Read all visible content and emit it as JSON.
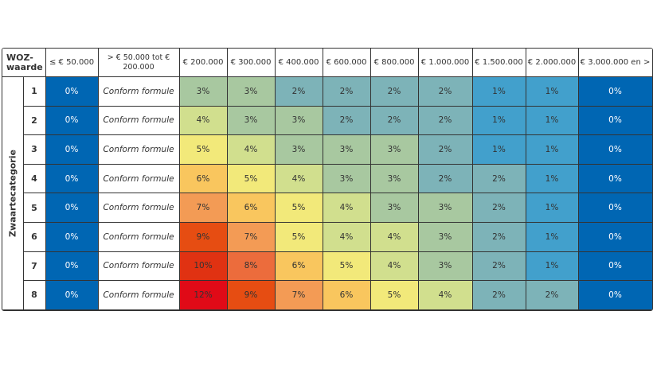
{
  "chart_data": {
    "type": "heatmap",
    "corner_label": "WOZ-waarde",
    "row_axis_label": "Zwaartecategorie",
    "columns": [
      "≤ € 50.000",
      "> € 50.000 tot € 200.000",
      "€ 200.000",
      "€ 300.000",
      "€ 400.000",
      "€ 600.000",
      "€ 800.000",
      "€ 1.000.000",
      "€ 1.500.000",
      "€ 2.000.000",
      "€ 3.000.000 en >"
    ],
    "rows": [
      "1",
      "2",
      "3",
      "4",
      "5",
      "6",
      "7",
      "8"
    ],
    "first_col_text": "0%",
    "second_col_text": "Conform formule",
    "last_col_text": "0%",
    "values": [
      [
        3,
        3,
        2,
        2,
        2,
        2,
        1,
        1
      ],
      [
        4,
        3,
        3,
        2,
        2,
        2,
        1,
        1
      ],
      [
        5,
        4,
        3,
        3,
        3,
        2,
        1,
        1
      ],
      [
        6,
        5,
        4,
        3,
        3,
        2,
        2,
        1
      ],
      [
        7,
        6,
        5,
        4,
        3,
        3,
        2,
        1
      ],
      [
        9,
        7,
        5,
        4,
        4,
        3,
        2,
        1
      ],
      [
        10,
        8,
        6,
        5,
        4,
        3,
        2,
        1
      ],
      [
        12,
        9,
        7,
        6,
        5,
        4,
        2,
        2
      ]
    ],
    "unit": "%",
    "colors": {
      "0": "#0066b3",
      "1": "#42a0cc",
      "2": "#7db3b8",
      "3": "#a8c8a0",
      "4": "#d1df8e",
      "5": "#f2e97a",
      "6": "#f9c65e",
      "7": "#f39b55",
      "8": "#ec6c3c",
      "9": "#e64d12",
      "10": "#e03212",
      "12": "#e00a17"
    }
  }
}
